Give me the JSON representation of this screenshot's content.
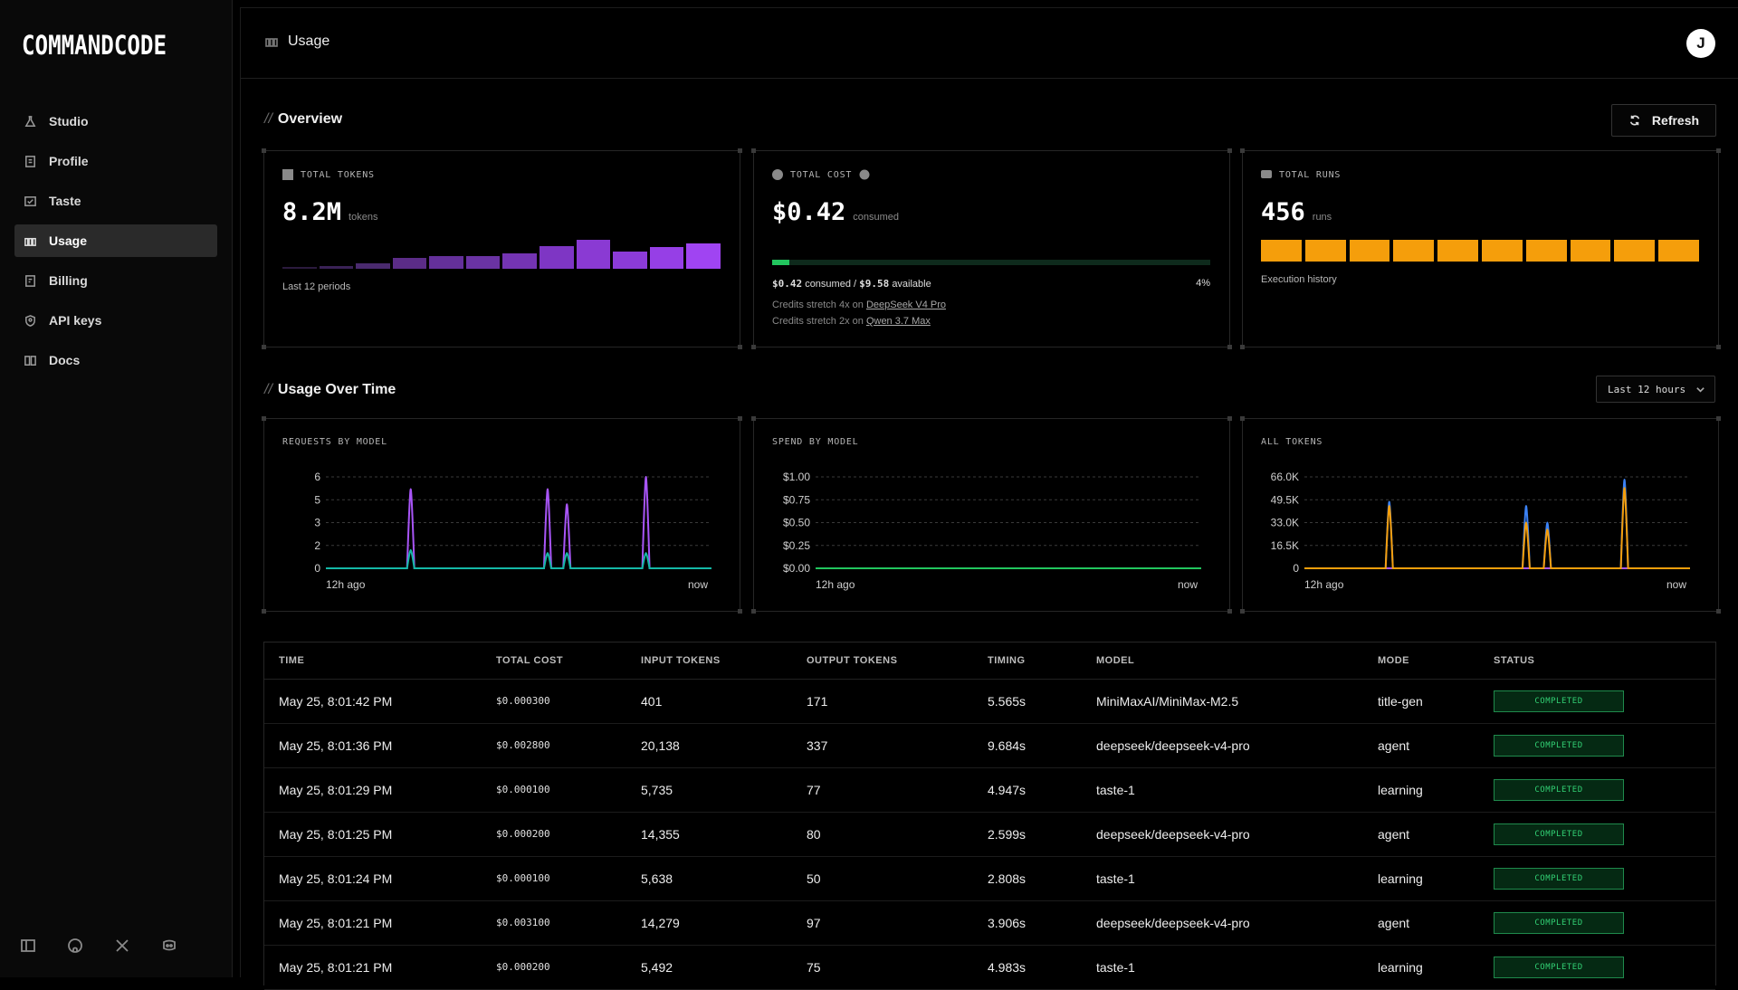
{
  "app": {
    "logo_text": "COMMANDCODE"
  },
  "sidebar": {
    "items": [
      {
        "label": "Studio",
        "icon": "flask-icon"
      },
      {
        "label": "Profile",
        "icon": "profile-icon"
      },
      {
        "label": "Taste",
        "icon": "taste-icon"
      },
      {
        "label": "Usage",
        "icon": "usage-icon",
        "active": true
      },
      {
        "label": "Billing",
        "icon": "billing-icon"
      },
      {
        "label": "API keys",
        "icon": "key-icon"
      },
      {
        "label": "Docs",
        "icon": "book-icon"
      }
    ],
    "footer_icons": [
      "collapse-sidebar-icon",
      "github-icon",
      "x-icon",
      "discord-icon"
    ]
  },
  "header": {
    "title": "Usage",
    "avatar_initial": "J"
  },
  "overview": {
    "title": "Overview",
    "refresh_label": "Refresh",
    "tokens": {
      "label": "TOTAL TOKENS",
      "value": "8.2M",
      "unit": "tokens",
      "caption": "Last 12 periods",
      "bars": [
        0.05,
        0.08,
        0.2,
        0.38,
        0.45,
        0.45,
        0.52,
        0.78,
        1.0,
        0.6,
        0.75,
        0.88
      ],
      "bar_colors": [
        "#2b1a3d",
        "#3a2256",
        "#4a2a6e",
        "#5b2c87",
        "#64309a",
        "#6a33a3",
        "#7434b3",
        "#7e36c4",
        "#8a3ad3",
        "#8c3bd8",
        "#963fe6",
        "#a044f2"
      ]
    },
    "cost": {
      "label": "TOTAL COST",
      "value": "$0.42",
      "unit": "consumed",
      "fraction": 0.04,
      "consumed": "$0.42",
      "consumed_text": "consumed /",
      "available": "$9.58",
      "available_text": "available",
      "percent": "4%",
      "stretch1_prefix": "Credits stretch 4x on",
      "stretch1_link": "DeepSeek V4 Pro",
      "stretch2_prefix": "Credits stretch 2x on",
      "stretch2_link": "Qwen 3.7 Max"
    },
    "runs": {
      "label": "TOTAL RUNS",
      "value": "456",
      "unit": "runs",
      "caption": "Execution history",
      "blocks": 10
    }
  },
  "usage_over_time": {
    "title": "Usage Over Time",
    "range": "Last 12 hours",
    "x_start": "12h ago",
    "x_end": "now"
  },
  "chart_data": [
    {
      "type": "line",
      "title": "REQUESTS BY MODEL",
      "yticks": [
        "6",
        "5",
        "3",
        "2",
        "0"
      ],
      "ylim": [
        0,
        6
      ],
      "series": [
        {
          "color": "#a855f7",
          "peaks": [
            [
              0.22,
              5.2
            ],
            [
              0.575,
              5.2
            ],
            [
              0.625,
              4.2
            ],
            [
              0.83,
              6.0
            ]
          ]
        },
        {
          "color": "#14b8a6",
          "peaks": [
            [
              0.22,
              1.2
            ],
            [
              0.575,
              1.0
            ],
            [
              0.625,
              1.0
            ],
            [
              0.83,
              1.0
            ]
          ]
        }
      ]
    },
    {
      "type": "line",
      "title": "SPEND BY MODEL",
      "yticks": [
        "$1.00",
        "$0.75",
        "$0.50",
        "$0.25",
        "$0.00"
      ],
      "ylim": [
        0,
        1
      ],
      "series": [
        {
          "color": "#22c55e",
          "peaks": []
        }
      ]
    },
    {
      "type": "line",
      "title": "ALL TOKENS",
      "yticks": [
        "66.0K",
        "49.5K",
        "33.0K",
        "16.5K",
        "0"
      ],
      "ylim": [
        0,
        66000
      ],
      "series": [
        {
          "color": "#a855f7",
          "peaks": []
        },
        {
          "color": "#3b82f6",
          "peaks": [
            [
              0.22,
              48000
            ],
            [
              0.575,
              45000
            ],
            [
              0.63,
              33000
            ],
            [
              0.83,
              64000
            ]
          ]
        },
        {
          "color": "#f59e0b",
          "peaks": [
            [
              0.22,
              45000
            ],
            [
              0.575,
              33000
            ],
            [
              0.63,
              28000
            ],
            [
              0.83,
              58000
            ]
          ]
        }
      ]
    }
  ],
  "table": {
    "headers": [
      "TIME",
      "TOTAL COST",
      "INPUT TOKENS",
      "OUTPUT TOKENS",
      "TIMING",
      "MODEL",
      "MODE",
      "STATUS"
    ],
    "rows": [
      [
        "May 25, 8:01:42 PM",
        "$0.000300",
        "401",
        "171",
        "5.565s",
        "MiniMaxAI/MiniMax-M2.5",
        "title-gen",
        "COMPLETED"
      ],
      [
        "May 25, 8:01:36 PM",
        "$0.002800",
        "20,138",
        "337",
        "9.684s",
        "deepseek/deepseek-v4-pro",
        "agent",
        "COMPLETED"
      ],
      [
        "May 25, 8:01:29 PM",
        "$0.000100",
        "5,735",
        "77",
        "4.947s",
        "taste-1",
        "learning",
        "COMPLETED"
      ],
      [
        "May 25, 8:01:25 PM",
        "$0.000200",
        "14,355",
        "80",
        "2.599s",
        "deepseek/deepseek-v4-pro",
        "agent",
        "COMPLETED"
      ],
      [
        "May 25, 8:01:24 PM",
        "$0.000100",
        "5,638",
        "50",
        "2.808s",
        "taste-1",
        "learning",
        "COMPLETED"
      ],
      [
        "May 25, 8:01:21 PM",
        "$0.003100",
        "14,279",
        "97",
        "3.906s",
        "deepseek/deepseek-v4-pro",
        "agent",
        "COMPLETED"
      ],
      [
        "May 25, 8:01:21 PM",
        "$0.000200",
        "5,492",
        "75",
        "4.983s",
        "taste-1",
        "learning",
        "COMPLETED"
      ]
    ]
  }
}
